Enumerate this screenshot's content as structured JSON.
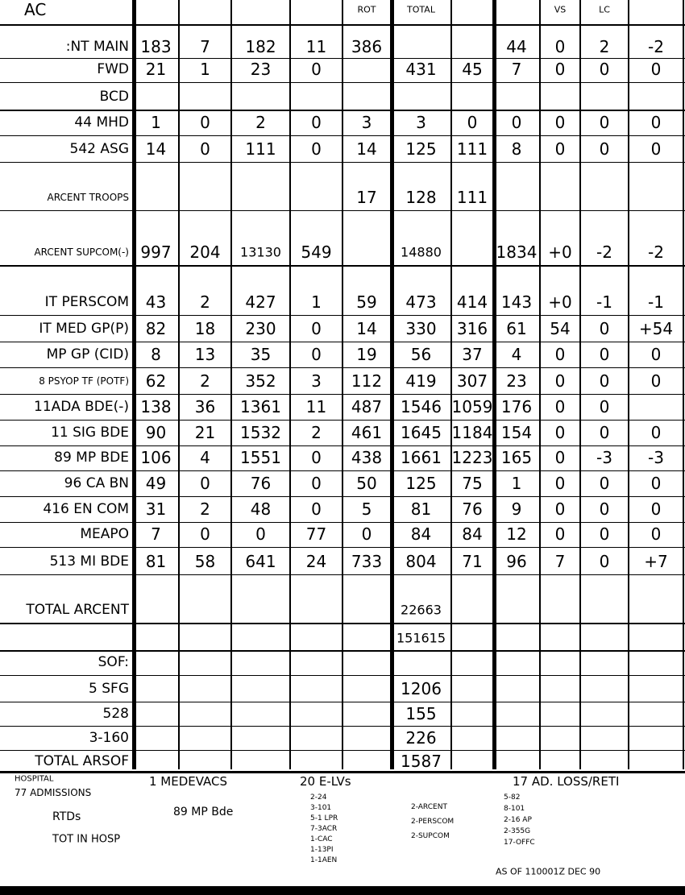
{
  "header": {
    "label": "AC",
    "cells": [
      null,
      null,
      null,
      null,
      "ROT",
      "TOTAL",
      null,
      null,
      "VS",
      "LC",
      null
    ]
  },
  "table": {
    "rows": [
      {
        "label": ":NT MAIN",
        "cells": [
          "183",
          "7",
          "182",
          "11",
          "386",
          null,
          null,
          "44",
          "0",
          "2",
          "-2"
        ]
      },
      {
        "label": "FWD",
        "cells": [
          "21",
          "1",
          "23",
          "0",
          null,
          "431",
          "45",
          "7",
          "0",
          "0",
          "0"
        ]
      },
      {
        "label": "BCD",
        "cells": [
          null,
          null,
          null,
          null,
          null,
          null,
          null,
          null,
          null,
          null,
          null
        ]
      },
      {
        "label": "44 MHD",
        "cells": [
          "1",
          "0",
          "2",
          "0",
          "3",
          "3",
          "0",
          "0",
          "0",
          "0",
          "0"
        ]
      },
      {
        "label": "542 ASG",
        "cells": [
          "14",
          "0",
          "111",
          "0",
          "14",
          "125",
          "111",
          "8",
          "0",
          "0",
          "0"
        ]
      },
      {
        "label": "ARCENT TROOPS",
        "cells": [
          null,
          null,
          null,
          null,
          "17",
          "128",
          "111",
          null,
          null,
          null,
          null
        ]
      },
      {
        "label": "ARCENT SUPCOM(-)",
        "cells": [
          "997",
          "204",
          "13130",
          "549",
          null,
          "14880",
          null,
          "1834",
          "+0",
          "-2",
          "-2"
        ]
      },
      {
        "label": "IT PERSCOM",
        "cells": [
          "43",
          "2",
          "427",
          "1",
          "59",
          "473",
          "414",
          "143",
          "+0",
          "-1",
          "-1"
        ]
      },
      {
        "label": "IT MED GP(P)",
        "cells": [
          "82",
          "18",
          "230",
          "0",
          "14",
          "330",
          "316",
          "61",
          "54",
          "0",
          "+54"
        ]
      },
      {
        "label": "MP GP (CID)",
        "cells": [
          "8",
          "13",
          "35",
          "0",
          "19",
          "56",
          "37",
          "4",
          "0",
          "0",
          "0"
        ]
      },
      {
        "label": "8 PSYOP TF (POTF)",
        "cells": [
          "62",
          "2",
          "352",
          "3",
          "112",
          "419",
          "307",
          "23",
          "0",
          "0",
          "0"
        ]
      },
      {
        "label": "11ADA BDE(-)",
        "cells": [
          "138",
          "36",
          "1361",
          "11",
          "487",
          "1546",
          "1059",
          "176",
          "0",
          "0",
          null
        ]
      },
      {
        "label": "11 SIG BDE",
        "cells": [
          "90",
          "21",
          "1532",
          "2",
          "461",
          "1645",
          "1184",
          "154",
          "0",
          "0",
          "0"
        ]
      },
      {
        "label": "89 MP BDE",
        "cells": [
          "106",
          "4",
          "1551",
          "0",
          "438",
          "1661",
          "1223",
          "165",
          "0",
          "-3",
          "-3"
        ]
      },
      {
        "label": "96 CA BN",
        "cells": [
          "49",
          "0",
          "76",
          "0",
          "50",
          "125",
          "75",
          "1",
          "0",
          "0",
          "0"
        ]
      },
      {
        "label": "416 EN COM",
        "cells": [
          "31",
          "2",
          "48",
          "0",
          "5",
          "81",
          "76",
          "9",
          "0",
          "0",
          "0"
        ]
      },
      {
        "label": "MEAPO",
        "cells": [
          "7",
          "0",
          "0",
          "77",
          "0",
          "84",
          "84",
          "12",
          "0",
          "0",
          "0"
        ]
      },
      {
        "label": "513 MI BDE",
        "cells": [
          "81",
          "58",
          "641",
          "24",
          "733",
          "804",
          "71",
          "96",
          "7",
          "0",
          "+7"
        ]
      },
      {
        "label": "TOTAL ARCENT",
        "cells": [
          null,
          null,
          null,
          null,
          null,
          "22663",
          null,
          null,
          null,
          null,
          null
        ]
      },
      {
        "label": null,
        "cells": [
          null,
          null,
          null,
          null,
          null,
          "151615",
          null,
          null,
          null,
          null,
          null
        ]
      },
      {
        "label": "SOF:",
        "cells": [
          null,
          null,
          null,
          null,
          null,
          null,
          null,
          null,
          null,
          null,
          null
        ]
      },
      {
        "label": "5 SFG",
        "cells": [
          null,
          null,
          null,
          null,
          null,
          "1206",
          null,
          null,
          null,
          null,
          null
        ]
      },
      {
        "label": "528",
        "cells": [
          null,
          null,
          null,
          null,
          null,
          "155",
          null,
          null,
          null,
          null,
          null
        ]
      },
      {
        "label": "3-160",
        "cells": [
          null,
          null,
          null,
          null,
          null,
          "226",
          null,
          null,
          null,
          null,
          null
        ]
      },
      {
        "label": "TOTAL ARSOF",
        "cells": [
          null,
          null,
          null,
          null,
          null,
          "1587",
          null,
          null,
          null,
          null,
          null
        ]
      }
    ]
  },
  "footer": {
    "hospital": "HOSPITAL",
    "admissions": "77 ADMISSIONS",
    "rtds": "RTDs",
    "tot_in_hosp": "TOT IN HOSP",
    "medevacs": "1 MEDEVACS",
    "medevac_note": "89 MP Bde",
    "elvs": "20 E-LVs",
    "elv_notes": [
      "2-24",
      "3-101",
      "5-1 LPR",
      "7-3ACR",
      "1-CAC",
      "1-13PI",
      "1-1AEN"
    ],
    "elv_side": [
      "2-ARCENT",
      "2-PERSCOM",
      "2-SUPCOM"
    ],
    "ad_loss": "17 AD. LOSS/RETI",
    "ad_notes": [
      "5-82",
      "8-101",
      "2-16 AP",
      "2-355G",
      "17-OFFC"
    ],
    "as_of": "AS OF 110001Z DEC 90"
  }
}
